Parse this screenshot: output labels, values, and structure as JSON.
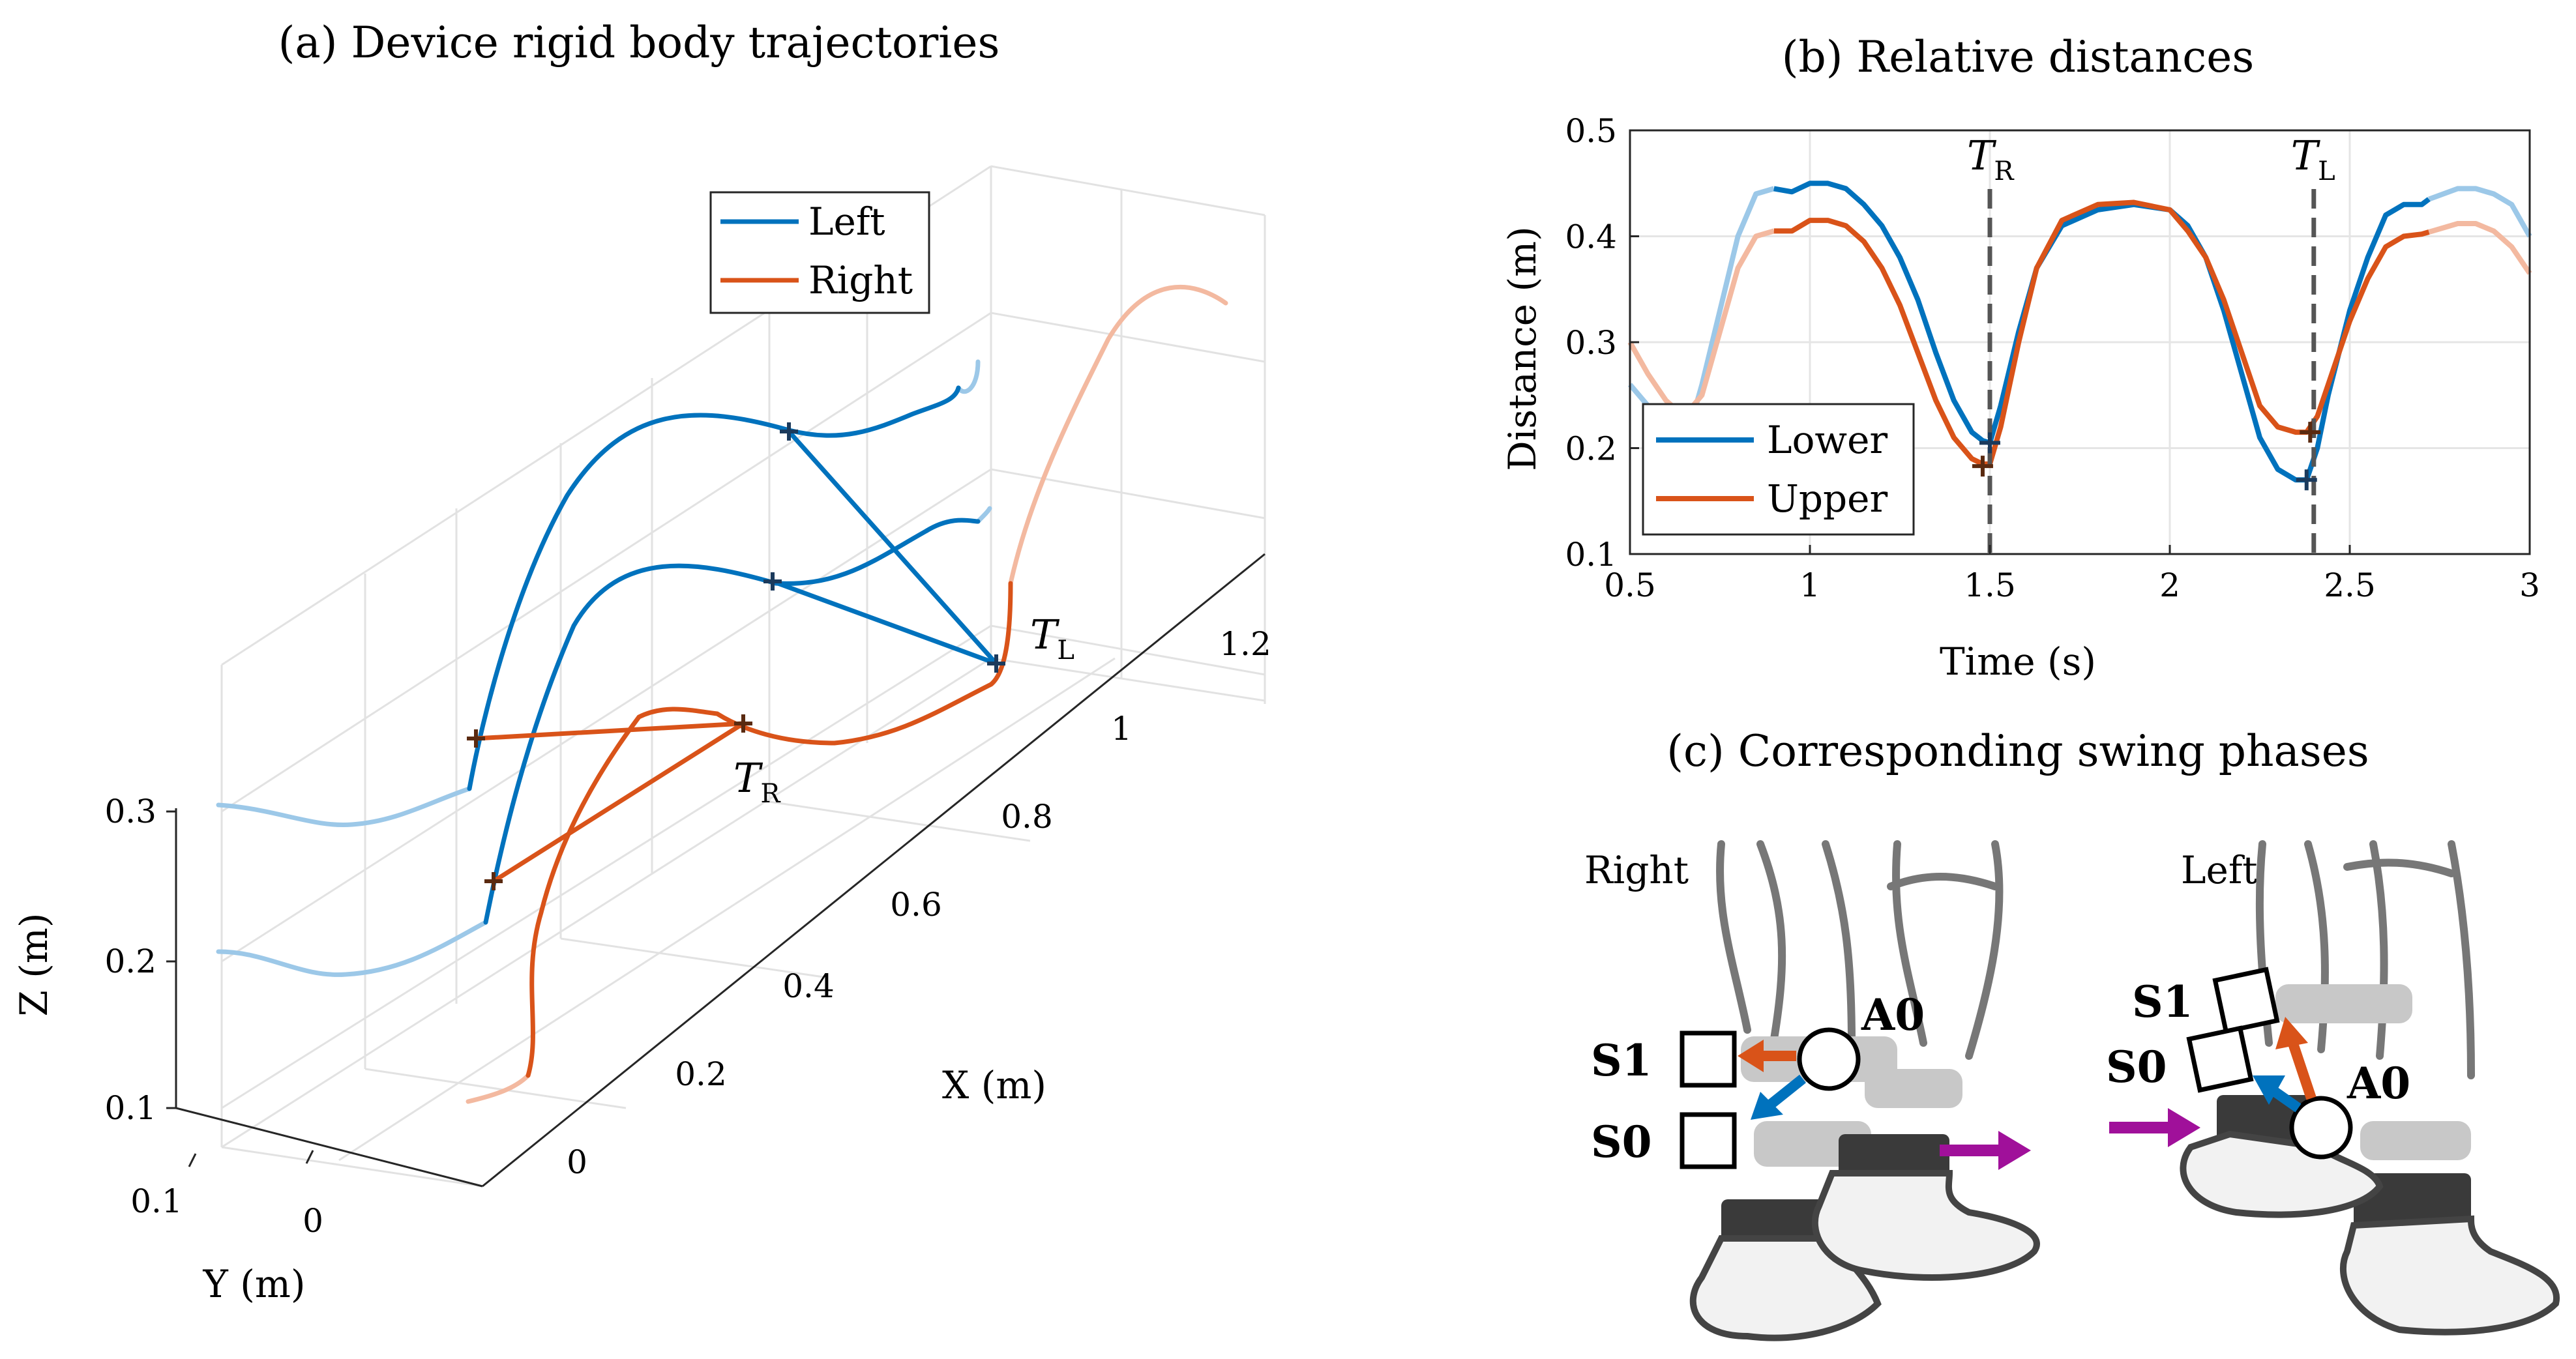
{
  "colors": {
    "blue": "#0072BD",
    "orange": "#D95319",
    "blue_faded": "#9CC8E8",
    "orange_faded": "#F3B9A0",
    "purple": "#A0109A",
    "grid": "#DEDEDE",
    "marker": "#333333"
  },
  "panel_a": {
    "title": "(a) Device rigid body trajectories",
    "legend": [
      "Left",
      "Right"
    ],
    "x_label": "X (m)",
    "y_label": "Y (m)",
    "z_label": "Z (m)",
    "x_ticks": [
      "0",
      "0.2",
      "0.4",
      "0.6",
      "0.8",
      "1",
      "1.2"
    ],
    "y_ticks": [
      "0.1",
      "0"
    ],
    "z_ticks": [
      "0.3",
      "0.2",
      "0.1"
    ],
    "annot_TL": "T",
    "annot_TL_sub": "L",
    "annot_TR": "T",
    "annot_TR_sub": "R"
  },
  "chart_data": [
    {
      "type": "line",
      "title": "(b) Relative distances",
      "xlabel": "Time (s)",
      "ylabel": "Distance (m)",
      "xlim": [
        0.5,
        3
      ],
      "ylim": [
        0.1,
        0.5
      ],
      "xticks": [
        0.5,
        1,
        1.5,
        2,
        2.5,
        3
      ],
      "xtick_labels": [
        "0.5",
        "1",
        "1.5",
        "2",
        "2.5",
        "3"
      ],
      "yticks": [
        0.1,
        0.2,
        0.3,
        0.4,
        0.5
      ],
      "ytick_labels": [
        "0.1",
        "0.2",
        "0.3",
        "0.4",
        "0.5"
      ],
      "legend_location": "bottom-left",
      "series": [
        {
          "name": "Lower",
          "color": "#0072BD",
          "faded_color": "#9CC8E8",
          "faded_before": 0.9,
          "faded_after": 2.72,
          "x": [
            0.5,
            0.55,
            0.6,
            0.65,
            0.7,
            0.75,
            0.8,
            0.85,
            0.9,
            0.95,
            1.0,
            1.05,
            1.1,
            1.15,
            1.2,
            1.25,
            1.3,
            1.35,
            1.4,
            1.45,
            1.48,
            1.5,
            1.53,
            1.58,
            1.63,
            1.7,
            1.8,
            1.9,
            2.0,
            2.05,
            2.1,
            2.15,
            2.2,
            2.25,
            2.3,
            2.35,
            2.38,
            2.41,
            2.44,
            2.5,
            2.55,
            2.6,
            2.65,
            2.7,
            2.72,
            2.76,
            2.8,
            2.85,
            2.9,
            2.95,
            3.0
          ],
          "y": [
            0.26,
            0.24,
            0.21,
            0.2,
            0.26,
            0.33,
            0.4,
            0.44,
            0.445,
            0.442,
            0.45,
            0.45,
            0.445,
            0.43,
            0.41,
            0.38,
            0.34,
            0.29,
            0.245,
            0.215,
            0.207,
            0.205,
            0.24,
            0.31,
            0.37,
            0.41,
            0.425,
            0.43,
            0.425,
            0.41,
            0.38,
            0.33,
            0.27,
            0.21,
            0.18,
            0.17,
            0.17,
            0.2,
            0.25,
            0.33,
            0.38,
            0.42,
            0.43,
            0.43,
            0.435,
            0.44,
            0.445,
            0.445,
            0.44,
            0.43,
            0.4
          ]
        },
        {
          "name": "Upper",
          "color": "#D95319",
          "faded_color": "#F3B9A0",
          "faded_before": 0.9,
          "faded_after": 2.72,
          "x": [
            0.5,
            0.55,
            0.6,
            0.65,
            0.7,
            0.75,
            0.8,
            0.85,
            0.9,
            0.95,
            1.0,
            1.05,
            1.1,
            1.15,
            1.2,
            1.25,
            1.3,
            1.35,
            1.4,
            1.45,
            1.48,
            1.5,
            1.53,
            1.58,
            1.63,
            1.7,
            1.8,
            1.9,
            2.0,
            2.05,
            2.1,
            2.15,
            2.2,
            2.25,
            2.3,
            2.35,
            2.38,
            2.41,
            2.44,
            2.5,
            2.55,
            2.6,
            2.65,
            2.7,
            2.72,
            2.76,
            2.8,
            2.85,
            2.9,
            2.95,
            3.0
          ],
          "y": [
            0.3,
            0.27,
            0.245,
            0.23,
            0.25,
            0.31,
            0.37,
            0.4,
            0.405,
            0.405,
            0.415,
            0.415,
            0.41,
            0.395,
            0.37,
            0.335,
            0.29,
            0.245,
            0.21,
            0.19,
            0.185,
            0.185,
            0.22,
            0.3,
            0.37,
            0.415,
            0.43,
            0.432,
            0.425,
            0.405,
            0.38,
            0.34,
            0.29,
            0.24,
            0.22,
            0.215,
            0.215,
            0.23,
            0.26,
            0.32,
            0.36,
            0.39,
            0.4,
            0.402,
            0.404,
            0.408,
            0.412,
            0.412,
            0.405,
            0.39,
            0.365
          ]
        }
      ],
      "markers": [
        {
          "series": "Lower",
          "x": 1.5,
          "y": 0.205
        },
        {
          "series": "Upper",
          "x": 1.48,
          "y": 0.183
        },
        {
          "series": "Lower",
          "x": 2.38,
          "y": 0.17
        },
        {
          "series": "Upper",
          "x": 2.39,
          "y": 0.215
        }
      ],
      "vlines": [
        {
          "x": 1.5,
          "label": "T",
          "sub": "R"
        },
        {
          "x": 2.4,
          "label": "T",
          "sub": "L"
        }
      ]
    }
  ],
  "panel_c": {
    "title": "(c) Corresponding swing phases",
    "right_label": "Right",
    "left_label": "Left",
    "right_labels": {
      "s1": "S1",
      "s0": "S0",
      "a0": "A0"
    },
    "left_labels": {
      "s1": "S1",
      "s0": "S0",
      "a0": "A0"
    }
  }
}
